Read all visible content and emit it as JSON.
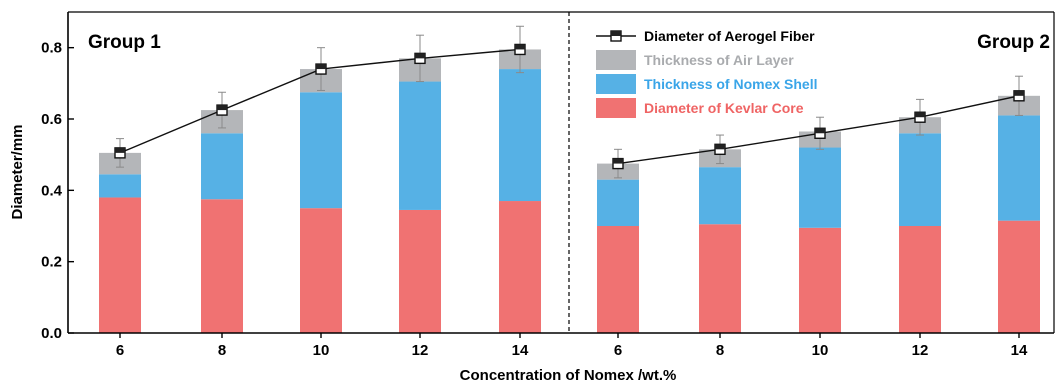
{
  "chart_data": {
    "type": "bar",
    "stacked": true,
    "xlabel": "Concentration of Nomex /wt.%",
    "ylabel": "Diameter/mm",
    "ylim": [
      0,
      0.9
    ],
    "yticks": [
      "0.0",
      "0.2",
      "0.4",
      "0.6",
      "0.8"
    ],
    "groups": [
      {
        "label": "Group 1",
        "categories": [
          "6",
          "8",
          "10",
          "12",
          "14"
        ]
      },
      {
        "label": "Group 2",
        "categories": [
          "6",
          "8",
          "10",
          "12",
          "14"
        ]
      }
    ],
    "series": [
      {
        "name": "Diameter of Kevlar Core",
        "color": "#f07272",
        "textColor": "#ef6464",
        "values": [
          0.38,
          0.375,
          0.35,
          0.345,
          0.37,
          0.3,
          0.305,
          0.295,
          0.3,
          0.315
        ]
      },
      {
        "name": "Thickness of Nomex Shell",
        "color": "#56b1e5",
        "textColor": "#3aa5e8",
        "values": [
          0.065,
          0.185,
          0.325,
          0.36,
          0.37,
          0.13,
          0.16,
          0.225,
          0.26,
          0.295
        ]
      },
      {
        "name": "Thickness of Air Layer",
        "color": "#b4b6b9",
        "textColor": "#a9abae",
        "values": [
          0.06,
          0.065,
          0.065,
          0.065,
          0.055,
          0.045,
          0.05,
          0.045,
          0.045,
          0.055
        ]
      }
    ],
    "line": {
      "name": "Diameter of Aerogel Fiber",
      "values": [
        0.505,
        0.625,
        0.74,
        0.77,
        0.795,
        0.475,
        0.515,
        0.56,
        0.605,
        0.665
      ],
      "errors": [
        0.04,
        0.05,
        0.06,
        0.065,
        0.065,
        0.04,
        0.04,
        0.045,
        0.05,
        0.055
      ]
    },
    "legend_position": "top-right",
    "grid": false
  }
}
